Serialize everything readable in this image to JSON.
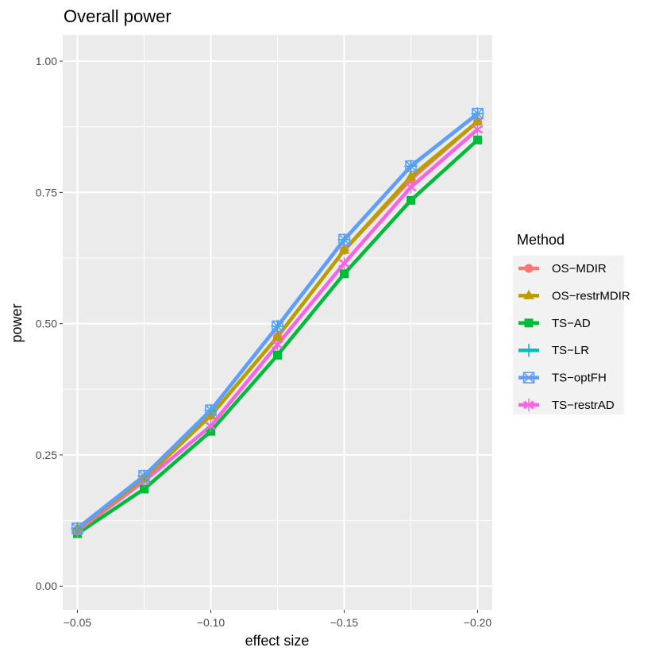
{
  "chart_data": {
    "type": "line",
    "title": "Overall power",
    "xlabel": "effect size",
    "ylabel": "power",
    "x": [
      -0.05,
      -0.075,
      -0.1,
      -0.125,
      -0.15,
      -0.175,
      -0.2
    ],
    "x_ticks": [
      -0.05,
      -0.1,
      -0.15,
      -0.2
    ],
    "x_tick_labels": [
      "−0.05",
      "−0.10",
      "−0.15",
      "−0.20"
    ],
    "xlim": [
      -0.0445,
      -0.2055
    ],
    "x_reversed": true,
    "y_ticks": [
      0.0,
      0.25,
      0.5,
      0.75,
      1.0
    ],
    "y_tick_labels": [
      "0.00",
      "0.25",
      "0.50",
      "0.75",
      "1.00"
    ],
    "ylim": [
      -0.045,
      1.05
    ],
    "grid": true,
    "legend": {
      "title": "Method",
      "position": "right"
    },
    "series": [
      {
        "name": "OS−MDIR",
        "color": "#F8766D",
        "marker": "circle",
        "values": [
          0.105,
          0.205,
          0.325,
          0.475,
          0.64,
          0.775,
          0.885
        ]
      },
      {
        "name": "OS−restrMDIR",
        "color": "#B79F00",
        "marker": "triangle",
        "values": [
          0.11,
          0.205,
          0.325,
          0.475,
          0.64,
          0.78,
          0.885
        ]
      },
      {
        "name": "TS−AD",
        "color": "#00BA38",
        "marker": "square",
        "values": [
          0.1,
          0.185,
          0.295,
          0.44,
          0.595,
          0.735,
          0.85
        ]
      },
      {
        "name": "TS−LR",
        "color": "#00BFC4",
        "marker": "plus",
        "values": [
          0.11,
          0.21,
          0.335,
          0.495,
          0.66,
          0.8,
          0.9
        ]
      },
      {
        "name": "TS−optFH",
        "color": "#619CFF",
        "marker": "square-cross",
        "values": [
          0.11,
          0.21,
          0.335,
          0.495,
          0.66,
          0.8,
          0.9
        ]
      },
      {
        "name": "TS−restrAD",
        "color": "#F564E3",
        "marker": "asterisk",
        "values": [
          0.105,
          0.2,
          0.305,
          0.46,
          0.615,
          0.76,
          0.87
        ]
      }
    ]
  }
}
